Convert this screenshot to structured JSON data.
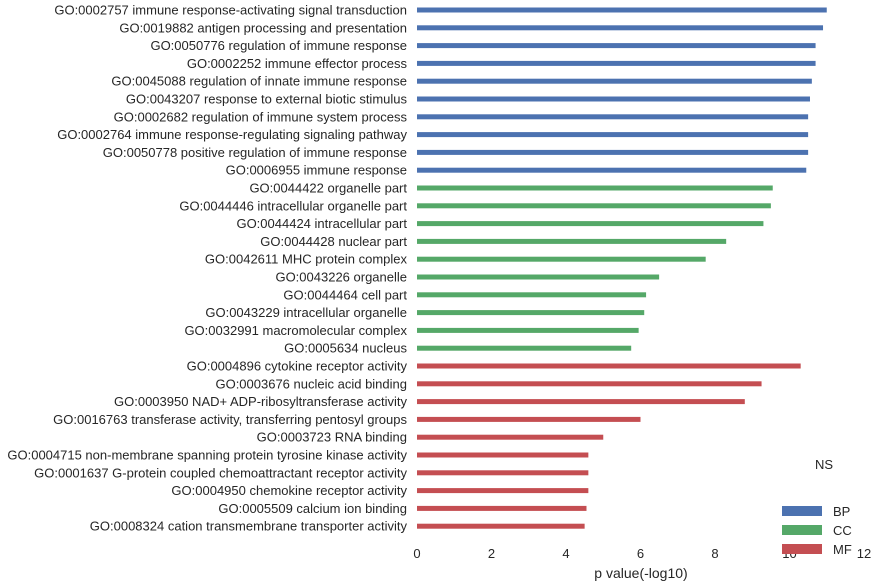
{
  "chart_data": {
    "type": "bar",
    "orientation": "horizontal",
    "xlabel": "p value(-log10)",
    "xlim": [
      0,
      12
    ],
    "xticks": [
      "0",
      "2",
      "4",
      "6",
      "8",
      "10",
      "12"
    ],
    "grid": false,
    "legend": {
      "title": "NS",
      "placement": "bottom-right"
    },
    "series": [
      {
        "name": "BP",
        "color": "#4c72b0",
        "categories": [
          "GO:0002757 immune response-activating signal transduction",
          "GO:0019882 antigen processing and presentation",
          "GO:0050776 regulation of immune response",
          "GO:0002252 immune effector process",
          "GO:0045088 regulation of innate immune response",
          "GO:0043207 response to external biotic stimulus",
          "GO:0002682 regulation of immune system process",
          "GO:0002764 immune response-regulating signaling pathway",
          "GO:0050778 positive regulation of immune response",
          "GO:0006955 immune response"
        ],
        "values": [
          11.0,
          10.9,
          10.7,
          10.7,
          10.6,
          10.55,
          10.5,
          10.5,
          10.5,
          10.45
        ]
      },
      {
        "name": "CC",
        "color": "#55a868",
        "categories": [
          "GO:0044422 organelle part",
          "GO:0044446 intracellular organelle part",
          "GO:0044424 intracellular part",
          "GO:0044428 nuclear part",
          "GO:0042611 MHC protein complex",
          "GO:0043226 organelle",
          "GO:0044464 cell part",
          "GO:0043229 intracellular organelle",
          "GO:0032991 macromolecular complex",
          "GO:0005634 nucleus"
        ],
        "values": [
          9.55,
          9.5,
          9.3,
          8.3,
          7.75,
          6.5,
          6.15,
          6.1,
          5.95,
          5.75
        ]
      },
      {
        "name": "MF",
        "color": "#c44e52",
        "categories": [
          "GO:0004896 cytokine receptor activity",
          "GO:0003676 nucleic acid binding",
          "GO:0003950 NAD+ ADP-ribosyltransferase activity",
          "GO:0016763 transferase activity, transferring pentosyl groups",
          "GO:0003723 RNA binding",
          "GO:0004715 non-membrane spanning protein tyrosine kinase activity",
          "GO:0001637 G-protein coupled chemoattractant receptor activity",
          "GO:0004950 chemokine receptor activity",
          "GO:0005509 calcium ion binding",
          "GO:0008324 cation transmembrane transporter activity"
        ],
        "values": [
          10.3,
          9.25,
          8.8,
          6.0,
          5.0,
          4.6,
          4.6,
          4.6,
          4.55,
          4.5
        ]
      }
    ]
  }
}
